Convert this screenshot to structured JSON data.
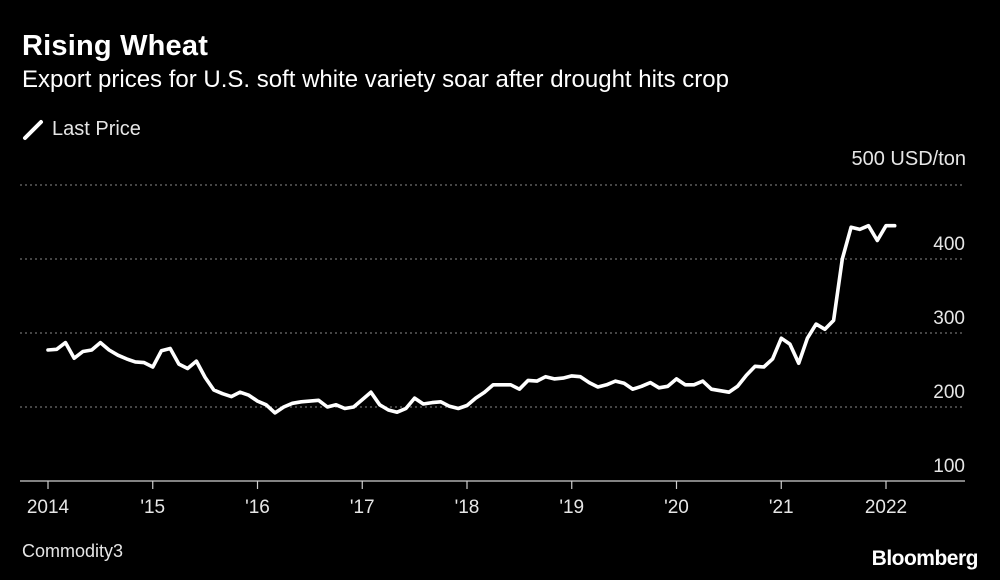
{
  "brand": "Bloomberg",
  "source": "Commodity3",
  "chart_data": {
    "type": "line",
    "title": "Rising Wheat",
    "subtitle": "Export prices for U.S. soft white variety soar after drought hits crop",
    "legend": [
      "Last Price"
    ],
    "legend_position": "top-left",
    "unit_label": "500 USD/ton",
    "ylim": [
      100,
      500
    ],
    "y_ticks": [
      100,
      200,
      300,
      400
    ],
    "grid": "horizontal dotted",
    "xlim": [
      2014,
      2022.4
    ],
    "x_tick_labels": [
      "2014",
      "'15",
      "'16",
      "'17",
      "'18",
      "'19",
      "'20",
      "'21",
      "2022"
    ],
    "x_tick_values": [
      2014,
      2015,
      2016,
      2017,
      2018,
      2019,
      2020,
      2021,
      2022
    ],
    "line_color": "#ffffff",
    "series": [
      {
        "name": "Last Price",
        "x": [
          2014.0,
          2014.083,
          2014.167,
          2014.25,
          2014.333,
          2014.417,
          2014.5,
          2014.583,
          2014.667,
          2014.75,
          2014.833,
          2014.917,
          2015.0,
          2015.083,
          2015.167,
          2015.25,
          2015.333,
          2015.417,
          2015.5,
          2015.583,
          2015.667,
          2015.75,
          2015.833,
          2015.917,
          2016.0,
          2016.083,
          2016.167,
          2016.25,
          2016.333,
          2016.417,
          2016.5,
          2016.583,
          2016.667,
          2016.75,
          2016.833,
          2016.917,
          2017.0,
          2017.083,
          2017.167,
          2017.25,
          2017.333,
          2017.417,
          2017.5,
          2017.583,
          2017.667,
          2017.75,
          2017.833,
          2017.917,
          2018.0,
          2018.083,
          2018.167,
          2018.25,
          2018.333,
          2018.417,
          2018.5,
          2018.583,
          2018.667,
          2018.75,
          2018.833,
          2018.917,
          2019.0,
          2019.083,
          2019.167,
          2019.25,
          2019.333,
          2019.417,
          2019.5,
          2019.583,
          2019.667,
          2019.75,
          2019.833,
          2019.917,
          2020.0,
          2020.083,
          2020.167,
          2020.25,
          2020.333,
          2020.417,
          2020.5,
          2020.583,
          2020.667,
          2020.75,
          2020.833,
          2020.917,
          2021.0,
          2021.083,
          2021.167,
          2021.25,
          2021.333,
          2021.417,
          2021.5,
          2021.583,
          2021.667,
          2021.75,
          2021.833,
          2021.917,
          2022.0,
          2022.083
        ],
        "values": [
          277,
          278,
          287,
          266,
          275,
          277,
          287,
          277,
          270,
          265,
          261,
          260,
          254,
          276,
          279,
          258,
          252,
          262,
          240,
          223,
          218,
          214,
          220,
          216,
          208,
          203,
          192,
          200,
          205,
          207,
          208,
          209,
          200,
          203,
          198,
          200,
          210,
          220,
          203,
          196,
          193,
          198,
          212,
          204,
          206,
          207,
          201,
          198,
          202,
          212,
          220,
          230,
          230,
          230,
          224,
          236,
          235,
          241,
          238,
          239,
          242,
          241,
          233,
          227,
          230,
          235,
          232,
          224,
          228,
          233,
          226,
          228,
          238,
          230,
          230,
          235,
          224,
          222,
          220,
          228,
          243,
          255,
          254,
          265,
          293,
          285,
          259,
          293,
          312,
          305,
          317,
          400,
          443,
          440,
          445,
          425,
          445,
          445
        ]
      }
    ]
  }
}
